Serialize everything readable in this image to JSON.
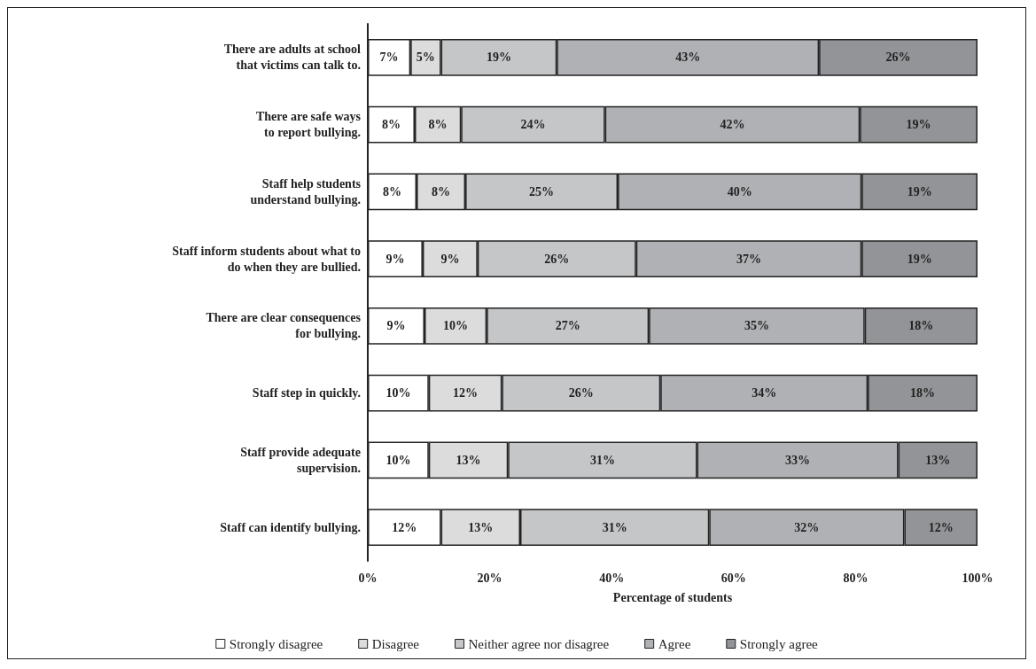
{
  "chart_data": {
    "type": "bar",
    "orientation": "horizontal",
    "stacked": true,
    "xlabel": "Percentage of students",
    "categories": [
      "There are adults at school\nthat victims can talk to.",
      "There are safe ways\nto report bullying.",
      "Staff help students\nunderstand bullying.",
      "Staff inform students about what to\ndo when they are bullied.",
      "There are clear consequences\nfor bullying.",
      "Staff step in quickly.",
      "Staff provide adequate\nsupervision.",
      "Staff can identify bullying."
    ],
    "series": [
      {
        "name": "Strongly disagree",
        "color": "#ffffff",
        "values": [
          7,
          7.7,
          8,
          9,
          9.3,
          10,
          10,
          12
        ],
        "value_labels": [
          "7%",
          "8%",
          "8%",
          "9%",
          "9%",
          "10%",
          "10%",
          "12%"
        ]
      },
      {
        "name": "Disagree",
        "color": "#dcdcdd",
        "values": [
          5,
          7.6,
          8,
          9,
          10.2,
          12,
          13,
          13
        ],
        "value_labels": [
          "5%",
          "8%",
          "8%",
          "9%",
          "10%",
          "12%",
          "13%",
          "13%"
        ]
      },
      {
        "name": "Neither agree nor disagree",
        "color": "#c5c6c8",
        "values": [
          19,
          23.6,
          25,
          26,
          26.6,
          26,
          31,
          31
        ],
        "value_labels": [
          "19%",
          "24%",
          "25%",
          "26%",
          "27%",
          "26%",
          "31%",
          "31%"
        ]
      },
      {
        "name": "Agree",
        "color": "#b0b1b4",
        "values": [
          43,
          41.8,
          40,
          37,
          35.4,
          34,
          33,
          32
        ],
        "value_labels": [
          "43%",
          "42%",
          "40%",
          "37%",
          "35%",
          "34%",
          "33%",
          "32%"
        ]
      },
      {
        "name": "Strongly agree",
        "color": "#939497",
        "values": [
          26,
          19.3,
          19,
          19,
          18.5,
          18,
          13,
          12
        ],
        "value_labels": [
          "26%",
          "19%",
          "19%",
          "19%",
          "18%",
          "18%",
          "13%",
          "12%"
        ]
      }
    ],
    "xlim": [
      0,
      100
    ],
    "xticks": [
      {
        "value": 0,
        "label": "0%"
      },
      {
        "value": 20,
        "label": "20%"
      },
      {
        "value": 40,
        "label": "40%"
      },
      {
        "value": 60,
        "label": "60%"
      },
      {
        "value": 80,
        "label": "80%"
      },
      {
        "value": 100,
        "label": "100%"
      }
    ],
    "grid": false,
    "legend": "bottom"
  }
}
